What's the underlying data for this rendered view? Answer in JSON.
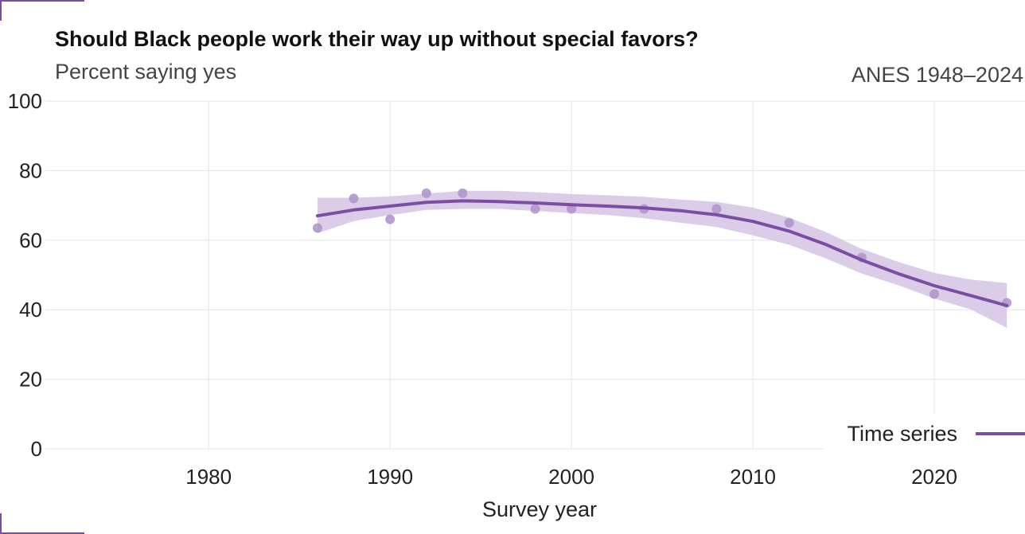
{
  "header": {
    "title": "Should Black people work their way up without special favors?",
    "subtitle": "Percent saying yes",
    "source": "ANES 1948–2024"
  },
  "colors": {
    "series": "#7b4ea4",
    "band": "#d9c9e6",
    "points": "#b196cc",
    "grid": "#e4e4e4",
    "corner": "#7a4ea3"
  },
  "chart_data": {
    "type": "line",
    "title": "Should Black people work their way up without special favors?",
    "subtitle": "Percent saying yes",
    "xlabel": "Survey year",
    "ylabel": "",
    "xlim": [
      1971,
      2025
    ],
    "ylim": [
      0,
      100
    ],
    "xticks": [
      1980,
      1990,
      2000,
      2010,
      2020
    ],
    "yticks": [
      0,
      20,
      40,
      60,
      80,
      100
    ],
    "grid": true,
    "legend": {
      "position": "bottom-right",
      "entries": [
        "Time series"
      ]
    },
    "points": [
      {
        "x": 1986,
        "y": 63.5
      },
      {
        "x": 1988,
        "y": 72.0
      },
      {
        "x": 1990,
        "y": 66.0
      },
      {
        "x": 1992,
        "y": 73.5
      },
      {
        "x": 1994,
        "y": 73.5
      },
      {
        "x": 1998,
        "y": 69.0
      },
      {
        "x": 2000,
        "y": 69.0
      },
      {
        "x": 2004,
        "y": 69.0
      },
      {
        "x": 2008,
        "y": 69.0
      },
      {
        "x": 2012,
        "y": 65.0
      },
      {
        "x": 2016,
        "y": 55.0
      },
      {
        "x": 2020,
        "y": 44.5
      },
      {
        "x": 2024,
        "y": 42.0
      }
    ],
    "series": [
      {
        "name": "Time series",
        "x": [
          1986,
          1988,
          1990,
          1992,
          1994,
          1996,
          1998,
          2000,
          2002,
          2004,
          2006,
          2008,
          2010,
          2012,
          2014,
          2016,
          2018,
          2020,
          2022,
          2024
        ],
        "y": [
          67.0,
          68.7,
          69.8,
          70.9,
          71.3,
          71.1,
          70.7,
          70.2,
          69.8,
          69.3,
          68.5,
          67.3,
          65.4,
          62.6,
          58.8,
          54.3,
          50.4,
          46.9,
          44.1,
          41.2
        ],
        "lower": [
          62.0,
          65.5,
          67.2,
          68.7,
          69.0,
          69.0,
          68.4,
          67.8,
          67.2,
          66.3,
          65.0,
          63.8,
          61.4,
          58.7,
          54.8,
          50.4,
          47.1,
          43.2,
          40.1,
          34.8
        ],
        "upper": [
          72.2,
          72.2,
          72.6,
          73.4,
          74.2,
          74.2,
          73.8,
          73.3,
          72.9,
          72.5,
          71.7,
          71.0,
          69.4,
          66.5,
          62.4,
          57.5,
          53.8,
          50.6,
          48.7,
          47.7
        ]
      }
    ]
  }
}
